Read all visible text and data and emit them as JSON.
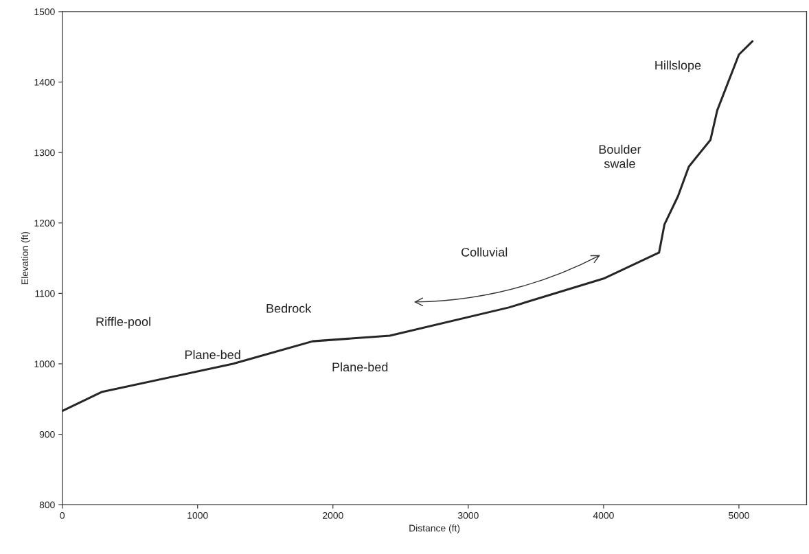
{
  "chart_data": {
    "type": "line",
    "xlabel": "Distance (ft)",
    "ylabel": "Elevation (ft)",
    "x": [
      0,
      290,
      1260,
      1850,
      2420,
      3300,
      4000,
      4410,
      4450,
      4550,
      4630,
      4790,
      4840,
      5000,
      5100
    ],
    "series": [
      {
        "color": "#262626",
        "values": [
          933,
          960,
          1000,
          1032,
          1040,
          1080,
          1121,
          1158,
          1198,
          1238,
          1280,
          1318,
          1360,
          1439,
          1458
        ]
      }
    ],
    "xlim": [
      0,
      5500
    ],
    "xticks": [
      0,
      1000,
      2000,
      3000,
      4000,
      5000
    ],
    "ylim": [
      800,
      1500
    ],
    "yticks": [
      800,
      900,
      1000,
      1100,
      1200,
      1300,
      1400,
      1500
    ],
    "grid": false,
    "marker": "none",
    "line_style": "solid",
    "annotations": [
      "Riffle-pool",
      "Plane-bed",
      "Bedrock",
      "Plane-bed",
      "Colluvial",
      "Boulder\nswale",
      "Hillslope"
    ]
  }
}
